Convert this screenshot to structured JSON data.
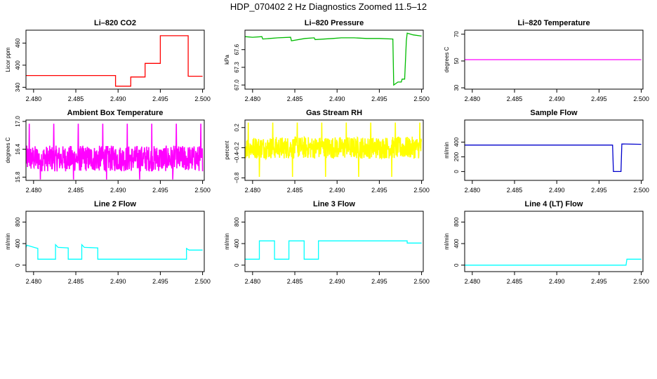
{
  "figure": {
    "title": "HDP_070402  2 Hz Diagnostics Zoomed 11.5–12"
  },
  "chart_data": [
    {
      "type": "line",
      "title": "Li–820 CO2",
      "ylabel": "Licor ppm",
      "xlabel": "",
      "color": "#ff0000",
      "xlim": [
        2.4791,
        2.5002
      ],
      "ylim": [
        335,
        495
      ],
      "xticks": [
        2.48,
        2.485,
        2.49,
        2.495,
        2.5
      ],
      "xtick_labels": [
        "2.480",
        "2.485",
        "2.490",
        "2.495",
        "2.500"
      ],
      "yticks": [
        340,
        400,
        460
      ],
      "ytick_labels": [
        "340",
        "400",
        "460"
      ],
      "series": [
        {
          "x": [
            2.4791,
            2.4897,
            2.4897,
            2.4915,
            2.4915,
            2.4932,
            2.4932,
            2.495,
            2.495,
            2.4983,
            2.4983,
            2.5
          ],
          "y": [
            372,
            372,
            343,
            343,
            368,
            368,
            405,
            405,
            480,
            480,
            370,
            370
          ]
        }
      ]
    },
    {
      "type": "line",
      "title": "Li–820 Pressure",
      "ylabel": "kPa",
      "xlabel": "",
      "color": "#00bb00",
      "xlim": [
        2.4791,
        2.5002
      ],
      "ylim": [
        66.93,
        67.93
      ],
      "xticks": [
        2.48,
        2.485,
        2.49,
        2.495,
        2.5
      ],
      "xtick_labels": [
        "2.480",
        "2.485",
        "2.490",
        "2.495",
        "2.500"
      ],
      "yticks": [
        67.0,
        67.3,
        67.6
      ],
      "ytick_labels": [
        "67.0",
        "67.3",
        "67.6"
      ],
      "series": [
        {
          "x": [
            2.4791,
            2.48,
            2.4811,
            2.4812,
            2.483,
            2.4845,
            2.4846,
            2.4862,
            2.4873,
            2.4874,
            2.4895,
            2.4905,
            2.492,
            2.4935,
            2.495,
            2.4966,
            2.4967,
            2.4972,
            2.4976,
            2.4977,
            2.498,
            2.4982,
            2.4983,
            2.499,
            2.5
          ],
          "y": [
            67.82,
            67.81,
            67.82,
            67.78,
            67.8,
            67.81,
            67.75,
            67.79,
            67.8,
            67.77,
            67.79,
            67.8,
            67.8,
            67.79,
            67.79,
            67.78,
            67.0,
            67.05,
            67.05,
            67.1,
            67.1,
            67.75,
            67.88,
            67.85,
            67.83
          ]
        }
      ]
    },
    {
      "type": "line",
      "title": "Li–820 Temperature",
      "ylabel": "degrees C",
      "xlabel": "",
      "color": "#ff00ff",
      "xlim": [
        2.4791,
        2.5002
      ],
      "ylim": [
        29,
        73
      ],
      "xticks": [
        2.48,
        2.485,
        2.49,
        2.495,
        2.5
      ],
      "xtick_labels": [
        "2.480",
        "2.485",
        "2.490",
        "2.495",
        "2.500"
      ],
      "yticks": [
        30,
        50,
        70
      ],
      "ytick_labels": [
        "30",
        "50",
        "70"
      ],
      "series": [
        {
          "x": [
            2.4791,
            2.5
          ],
          "y": [
            51,
            51
          ]
        }
      ]
    },
    {
      "type": "line",
      "title": "Ambient Box Temperature",
      "ylabel": "degrees C",
      "xlabel": "",
      "color": "#ff00ff",
      "noisy": true,
      "noise_center": 16.2,
      "noise_amplitude": 0.28,
      "noise_spikes": [
        16.95,
        15.75
      ],
      "xlim": [
        2.4791,
        2.5002
      ],
      "ylim": [
        15.73,
        17.03
      ],
      "xticks": [
        2.48,
        2.485,
        2.49,
        2.495,
        2.5
      ],
      "xtick_labels": [
        "2.480",
        "2.485",
        "2.490",
        "2.495",
        "2.500"
      ],
      "yticks": [
        15.8,
        16.4,
        17.0
      ],
      "ytick_labels": [
        "15.8",
        "16.4",
        "17.0"
      ],
      "series": [
        {
          "x": [
            2.4791,
            2.5
          ],
          "y": [
            16.2,
            16.2
          ]
        }
      ]
    },
    {
      "type": "line",
      "title": "Gas Stream RH",
      "ylabel": "percent",
      "xlabel": "",
      "color": "#ffff00",
      "noisy": true,
      "noise_center": -0.2,
      "noise_amplitude": 0.22,
      "noise_spikes": [
        0.3,
        -0.78
      ],
      "xlim": [
        2.4791,
        2.5002
      ],
      "ylim": [
        -0.85,
        0.35
      ],
      "xticks": [
        2.48,
        2.485,
        2.49,
        2.495,
        2.5
      ],
      "xtick_labels": [
        "2.480",
        "2.485",
        "2.490",
        "2.495",
        "2.500"
      ],
      "yticks": [
        -0.8,
        -0.4,
        -0.2,
        0.2
      ],
      "ytick_labels": [
        "−0.8",
        "−0.4",
        "−0.2",
        "0.2"
      ],
      "series": [
        {
          "x": [
            2.4791,
            2.5
          ],
          "y": [
            -0.2,
            -0.2
          ]
        }
      ]
    },
    {
      "type": "line",
      "title": "Sample Flow",
      "ylabel": "ml/min",
      "xlabel": "",
      "color": "#0000cc",
      "xlim": [
        2.4791,
        2.5002
      ],
      "ylim": [
        -120,
        700
      ],
      "xticks": [
        2.48,
        2.485,
        2.49,
        2.495,
        2.5
      ],
      "xtick_labels": [
        "2.480",
        "2.485",
        "2.490",
        "2.495",
        "2.500"
      ],
      "yticks": [
        0,
        200,
        400
      ],
      "ytick_labels": [
        "0",
        "200",
        "400"
      ],
      "series": [
        {
          "x": [
            2.4791,
            2.4966,
            2.4967,
            2.4976,
            2.4977,
            2.5
          ],
          "y": [
            360,
            360,
            0,
            0,
            375,
            370
          ]
        }
      ]
    },
    {
      "type": "line",
      "title": "Line 2 Flow",
      "ylabel": "ml/min",
      "xlabel": "",
      "color": "#00ffff",
      "xlim": [
        2.4791,
        2.5002
      ],
      "ylim": [
        -120,
        1000
      ],
      "xticks": [
        2.48,
        2.485,
        2.49,
        2.495,
        2.5
      ],
      "xtick_labels": [
        "2.480",
        "2.485",
        "2.490",
        "2.495",
        "2.500"
      ],
      "yticks": [
        0,
        400,
        800
      ],
      "ytick_labels": [
        "0",
        "400",
        "800"
      ],
      "series": [
        {
          "x": [
            2.4791,
            2.4792,
            2.4805,
            2.4805,
            2.4826,
            2.4826,
            2.4829,
            2.4841,
            2.4841,
            2.4857,
            2.4857,
            2.486,
            2.4876,
            2.4876,
            2.4981,
            2.4981,
            2.4984,
            2.5
          ],
          "y": [
            330,
            370,
            310,
            110,
            110,
            380,
            330,
            320,
            110,
            110,
            380,
            330,
            320,
            110,
            110,
            310,
            280,
            280
          ]
        }
      ]
    },
    {
      "type": "line",
      "title": "Line 3 Flow",
      "ylabel": "ml/min",
      "xlabel": "",
      "color": "#00ffff",
      "xlim": [
        2.4791,
        2.5002
      ],
      "ylim": [
        -120,
        1000
      ],
      "xticks": [
        2.48,
        2.485,
        2.49,
        2.495,
        2.5
      ],
      "xtick_labels": [
        "2.480",
        "2.485",
        "2.490",
        "2.495",
        "2.500"
      ],
      "yticks": [
        0,
        400,
        800
      ],
      "ytick_labels": [
        "0",
        "400",
        "800"
      ],
      "series": [
        {
          "x": [
            2.4791,
            2.4808,
            2.4808,
            2.4826,
            2.4826,
            2.4843,
            2.4843,
            2.4861,
            2.4861,
            2.4878,
            2.4878,
            2.4983,
            2.4983,
            2.5
          ],
          "y": [
            110,
            110,
            450,
            450,
            110,
            110,
            450,
            450,
            110,
            110,
            450,
            450,
            410,
            410
          ]
        }
      ]
    },
    {
      "type": "line",
      "title": "Line 4 (LT) Flow",
      "ylabel": "ml/min",
      "xlabel": "",
      "color": "#00ffff",
      "xlim": [
        2.4791,
        2.5002
      ],
      "ylim": [
        -120,
        1000
      ],
      "xticks": [
        2.48,
        2.485,
        2.49,
        2.495,
        2.5
      ],
      "xtick_labels": [
        "2.480",
        "2.485",
        "2.490",
        "2.495",
        "2.500"
      ],
      "yticks": [
        0,
        400,
        800
      ],
      "ytick_labels": [
        "0",
        "400",
        "800"
      ],
      "series": [
        {
          "x": [
            2.4791,
            2.4982,
            2.4983,
            2.5
          ],
          "y": [
            0,
            0,
            110,
            110
          ]
        }
      ]
    }
  ]
}
